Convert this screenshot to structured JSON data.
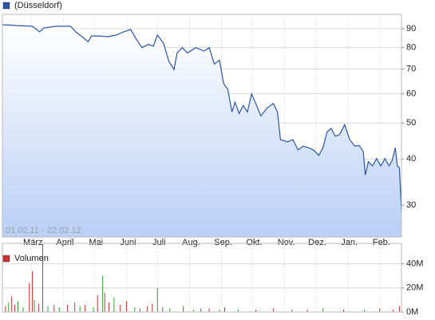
{
  "chart_data": [
    {
      "type": "line",
      "subtitle": "01.02.11 - 22.02.12",
      "series": [
        {
          "name": "(Düsseldorf)",
          "color": "#2a55a8",
          "x": [
            0,
            13,
            29,
            36,
            40,
            52,
            66,
            71,
            75,
            83,
            86,
            94,
            102,
            110,
            117,
            124,
            129,
            135,
            141,
            146,
            150,
            156,
            161,
            166,
            169,
            174,
            179,
            187,
            195,
            200,
            205,
            210,
            214,
            218,
            222,
            225,
            229,
            233,
            237,
            241,
            245,
            250,
            256,
            262,
            266,
            269,
            276,
            281,
            286,
            291,
            296,
            301,
            306,
            310,
            314,
            318,
            322,
            326,
            331,
            336,
            341,
            345,
            349,
            351,
            354,
            358,
            362,
            366,
            370,
            374,
            377,
            380,
            382,
            384,
            386
          ],
          "values": [
            92.3,
            91.8,
            91.4,
            88.2,
            90.4,
            91.4,
            91.4,
            88.2,
            86.5,
            83.0,
            86.0,
            86.0,
            85.6,
            86.5,
            88.2,
            89.6,
            84.8,
            80.0,
            81.6,
            80.8,
            86.5,
            82.0,
            73.5,
            69.8,
            77.4,
            80.0,
            77.4,
            80.0,
            78.3,
            80.0,
            72.2,
            74.0,
            63.9,
            61.7,
            53.6,
            56.9,
            53.1,
            55.8,
            53.6,
            60.0,
            56.5,
            52.3,
            54.9,
            56.5,
            53.6,
            45.1,
            44.5,
            45.1,
            42.3,
            43.3,
            42.9,
            42.3,
            40.9,
            42.9,
            47.3,
            48.4,
            46.1,
            46.5,
            49.5,
            45.1,
            43.3,
            43.5,
            41.9,
            36.2,
            39.3,
            38.3,
            40.1,
            38.3,
            40.1,
            38.3,
            39.6,
            42.9,
            38.3,
            37.9,
            28.8
          ]
        }
      ],
      "xlim": [
        0,
        386
      ],
      "xticks": [
        {
          "value": 28,
          "label": "März"
        },
        {
          "value": 59,
          "label": "April"
        },
        {
          "value": 89,
          "label": "Mai"
        },
        {
          "value": 120,
          "label": "Juni"
        },
        {
          "value": 150,
          "label": "Juli"
        },
        {
          "value": 181,
          "label": "Aug."
        },
        {
          "value": 212,
          "label": "Sep."
        },
        {
          "value": 242,
          "label": "Okt."
        },
        {
          "value": 273,
          "label": "Nov."
        },
        {
          "value": 303,
          "label": "Dez."
        },
        {
          "value": 334,
          "label": "Jan."
        },
        {
          "value": 365,
          "label": "Feb."
        }
      ],
      "ylim": [
        24.6,
        98.4
      ],
      "yticks": [
        30,
        40,
        50,
        60,
        70,
        80,
        90
      ],
      "log_y": true,
      "grid": true
    },
    {
      "type": "bar",
      "series": [
        {
          "name": "Volumen",
          "color": "#d03030",
          "x": [
            3,
            6,
            9,
            12,
            15,
            20,
            26,
            29,
            31,
            35,
            39,
            44,
            50,
            55,
            63,
            70,
            75,
            80,
            88,
            92,
            97,
            99,
            103,
            108,
            114,
            120,
            128,
            133,
            140,
            145,
            150,
            155,
            162,
            175,
            185,
            192,
            200,
            210,
            215,
            228,
            245,
            262,
            280,
            295,
            310,
            330,
            350,
            365,
            378,
            384
          ],
          "values": [
            5,
            8,
            13,
            6,
            9,
            4,
            24,
            34,
            10,
            7,
            57,
            5,
            6,
            4,
            6,
            8,
            5,
            6,
            4,
            14,
            30,
            16,
            8,
            12,
            6,
            9,
            4,
            3,
            5,
            7,
            20,
            4,
            3,
            5,
            2,
            3,
            3,
            2,
            4,
            2,
            2,
            3,
            2,
            2,
            3,
            2,
            2,
            3,
            2,
            5
          ],
          "colors": [
            "#d03030",
            "#30a030",
            "#d03030",
            "#d03030",
            "#30a030",
            "#30a030",
            "#d03030",
            "#d03030",
            "#30a030",
            "#d03030",
            "#d03030",
            "#30a030",
            "#d03030",
            "#30a030",
            "#d03030",
            "#d03030",
            "#30a030",
            "#d03030",
            "#30a030",
            "#d03030",
            "#30a030",
            "#d03030",
            "#d03030",
            "#30a030",
            "#d03030",
            "#d03030",
            "#30a030",
            "#d03030",
            "#d03030",
            "#d03030",
            "#30a030",
            "#d03030",
            "#30a030",
            "#d03030",
            "#30a030",
            "#d03030",
            "#d03030",
            "#30a030",
            "#d03030",
            "#30a030",
            "#d03030",
            "#d03030",
            "#30a030",
            "#d03030",
            "#30a030",
            "#d03030",
            "#30a030",
            "#d03030",
            "#d03030",
            "#d03030"
          ]
        }
      ],
      "xlim": [
        0,
        386
      ],
      "ylim": [
        0,
        57
      ],
      "yticks": [
        {
          "value": 0,
          "label": "0M"
        },
        {
          "value": 20,
          "label": "20M"
        },
        {
          "value": 40,
          "label": "40M"
        }
      ],
      "grid": true
    }
  ]
}
